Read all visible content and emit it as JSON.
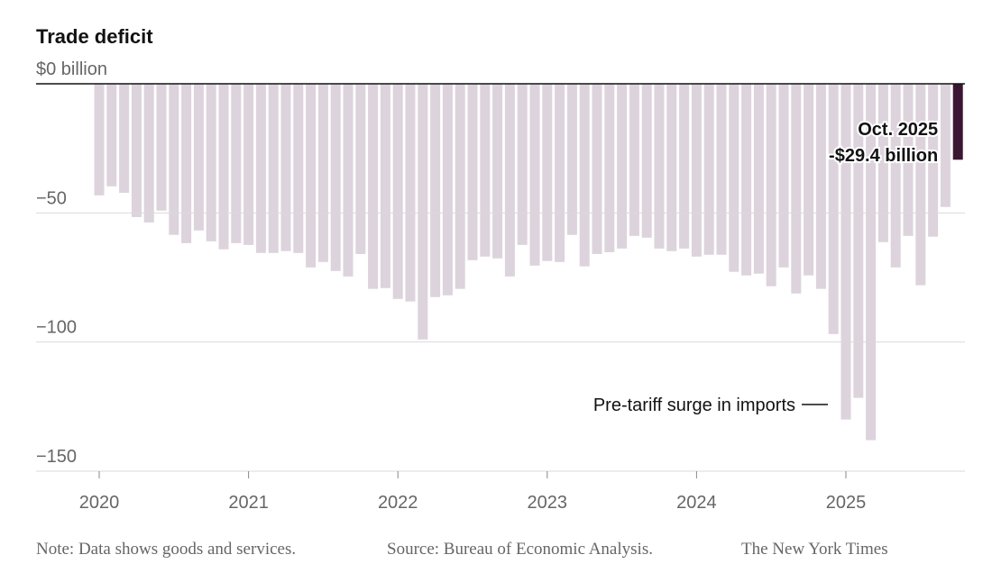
{
  "chart_data": {
    "type": "bar",
    "title": "Trade deficit",
    "categories": [
      "2020",
      null,
      null,
      null,
      null,
      null,
      null,
      null,
      null,
      null,
      null,
      null,
      "2021",
      null,
      null,
      null,
      null,
      null,
      null,
      null,
      null,
      null,
      null,
      null,
      "2022",
      null,
      null,
      null,
      null,
      null,
      null,
      null,
      null,
      null,
      null,
      null,
      "2023",
      null,
      null,
      null,
      null,
      null,
      null,
      null,
      null,
      null,
      null,
      null,
      "2024",
      null,
      null,
      null,
      null,
      null,
      null,
      null,
      null,
      null,
      null,
      null,
      "2025",
      null,
      null,
      null,
      null,
      null,
      null,
      null,
      null,
      null
    ],
    "values": [
      -43.2,
      -39.7,
      -42.2,
      -51.6,
      -53.7,
      -49.1,
      -58.5,
      -61.7,
      -56.8,
      -61.0,
      -64.1,
      -61.7,
      -62.4,
      -65.5,
      -65.5,
      -64.8,
      -65.5,
      -71.1,
      -69.0,
      -72.5,
      -74.6,
      -65.9,
      -79.4,
      -79.1,
      -83.3,
      -84.3,
      -99.0,
      -82.6,
      -81.9,
      -79.4,
      -68.3,
      -66.9,
      -67.6,
      -74.6,
      -62.4,
      -70.4,
      -68.6,
      -69.0,
      -58.5,
      -70.7,
      -65.9,
      -65.2,
      -63.8,
      -58.9,
      -59.6,
      -63.8,
      -64.8,
      -63.8,
      -66.9,
      -66.2,
      -66.2,
      -72.8,
      -74.2,
      -73.5,
      -78.4,
      -71.1,
      -81.2,
      -74.2,
      -79.4,
      -96.9,
      -130.0,
      -121.6,
      -138.0,
      -61.3,
      -71.1,
      -58.9,
      -78.0,
      -59.2,
      -47.7,
      -29.4
    ],
    "value_labels": [
      null,
      null,
      null,
      null,
      null,
      null,
      null,
      null,
      null,
      null,
      null,
      null,
      null,
      null,
      null,
      null,
      null,
      null,
      null,
      null,
      null,
      null,
      null,
      null,
      null,
      null,
      null,
      null,
      null,
      null,
      null,
      null,
      null,
      null,
      null,
      null,
      null,
      null,
      null,
      null,
      null,
      null,
      null,
      null,
      null,
      null,
      null,
      null,
      null,
      null,
      null,
      null,
      null,
      null,
      null,
      null,
      null,
      null,
      null,
      null,
      null,
      null,
      null,
      null,
      null,
      null,
      null,
      null,
      null,
      "-$29.4 billion"
    ],
    "value_label_title": "Oct. 2025",
    "color": "#ddd3dc",
    "highlight_color": "#3b1632",
    "ylim": [
      -150,
      0
    ],
    "yticks": [
      {
        "value": 0,
        "label": "$0 billion"
      },
      {
        "value": -50,
        "label": "−50"
      },
      {
        "value": -100,
        "label": "−100"
      },
      {
        "value": -150,
        "label": "−150"
      }
    ],
    "grid": true,
    "annotation": "Pre-tariff surge in imports",
    "note": "Note: Data shows goods and services.",
    "source": "Source: Bureau of Economic Analysis.",
    "credit": "The New York Times"
  }
}
